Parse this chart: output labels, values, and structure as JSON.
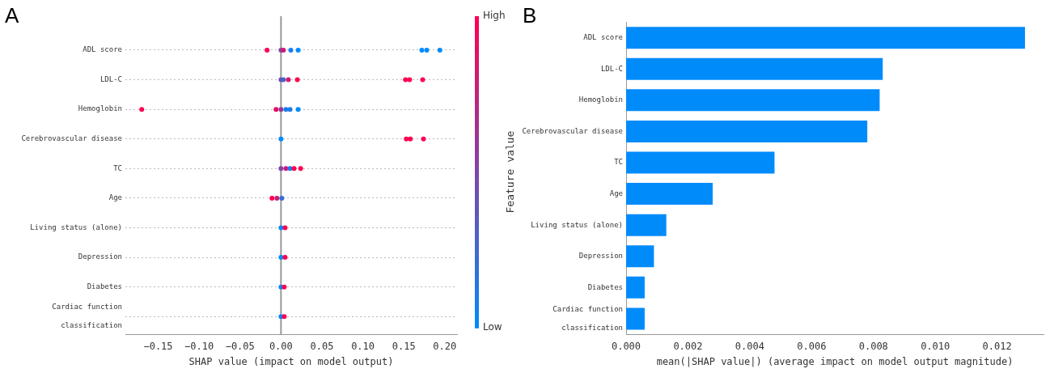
{
  "chart_data": [
    {
      "type": "scatter",
      "title": "A",
      "xlabel": "SHAP value (impact on model output)",
      "clabel": "Feature value",
      "orientation": "horizontal",
      "categories": [
        "ADL score",
        "LDL-C",
        "Hemoglobin",
        "Cerebrovascular disease",
        "TC",
        "Age",
        "Living status (alone)",
        "Depression",
        "Diabetes",
        "Cardiac function\nclassification"
      ],
      "xlim": [
        -0.19,
        0.215
      ],
      "xticks": [
        {
          "value": -0.15,
          "label": "−0.15"
        },
        {
          "value": -0.1,
          "label": "−0.10"
        },
        {
          "value": -0.05,
          "label": "−0.05"
        },
        {
          "value": 0,
          "label": "0.00"
        },
        {
          "value": 0.05,
          "label": "0.05"
        },
        {
          "value": 0.1,
          "label": "0.10"
        },
        {
          "value": 0.15,
          "label": "0.15"
        },
        {
          "value": 0.2,
          "label": "0.20"
        }
      ],
      "grid": "y",
      "marker": "circle",
      "legend": false,
      "ref_lines": [
        {
          "axis": "x",
          "value": 0,
          "color": "#999999"
        }
      ],
      "clim": [
        0,
        1
      ],
      "cticks": [
        {
          "value": 0,
          "label": "Low"
        },
        {
          "value": 1,
          "label": "High"
        }
      ],
      "series": [
        {
          "x": [
            "ADL score",
            "ADL score",
            "ADL score",
            "ADL score",
            "ADL score",
            "ADL score",
            "ADL score",
            "ADL score",
            "LDL-C",
            "LDL-C",
            "LDL-C",
            "LDL-C",
            "LDL-C",
            "LDL-C",
            "LDL-C",
            "Hemoglobin",
            "Hemoglobin",
            "Hemoglobin",
            "Hemoglobin",
            "Hemoglobin",
            "Hemoglobin",
            "Cerebrovascular disease",
            "Cerebrovascular disease",
            "Cerebrovascular disease",
            "Cerebrovascular disease",
            "TC",
            "TC",
            "TC",
            "TC",
            "TC",
            "Age",
            "Age",
            "Age",
            "Living status (alone)",
            "Living status (alone)",
            "Depression",
            "Depression",
            "Diabetes",
            "Diabetes",
            "Cardiac function\nclassification",
            "Cardiac function\nclassification"
          ],
          "values": [
            -0.017,
            0,
            0.003,
            0.012,
            0.021,
            0.172,
            0.178,
            0.194,
            0,
            0.003,
            0.009,
            0.02,
            0.152,
            0.157,
            0.173,
            -0.17,
            -0.006,
            0,
            0.006,
            0.011,
            0.021,
            0,
            0.153,
            0.158,
            0.174,
            0,
            0.006,
            0.011,
            0.016,
            0.024,
            -0.011,
            -0.005,
            0.001,
            0,
            0.005,
            0,
            0.005,
            0,
            0.004,
            0,
            0.004
          ],
          "cvalues": [
            1,
            0.5,
            0.8,
            0.1,
            0,
            0,
            0,
            0,
            0.4,
            0.3,
            0.8,
            1,
            1,
            1,
            1,
            1,
            0.9,
            0.6,
            0.1,
            0.1,
            0,
            0,
            1,
            1,
            1,
            0.5,
            0.8,
            0.1,
            1,
            1,
            1,
            0.8,
            0.2,
            0,
            1,
            0,
            1,
            0,
            1,
            0,
            1
          ]
        }
      ]
    },
    {
      "type": "bar",
      "title": "B",
      "xlabel": "mean(|SHAP value|) (average impact on model output magnitude)",
      "orientation": "horizontal",
      "categories": [
        "ADL score",
        "LDL-C",
        "Hemoglobin",
        "Cerebrovascular disease",
        "TC",
        "Age",
        "Living status (alone)",
        "Depression",
        "Diabetes",
        "Cardiac function\nclassification"
      ],
      "values": [
        0.0129,
        0.0083,
        0.0082,
        0.0078,
        0.0048,
        0.0028,
        0.0013,
        0.0009,
        0.0006,
        0.0006
      ],
      "color": "#008bfb",
      "xlim": [
        0,
        0.0135
      ],
      "xticks": [
        {
          "value": 0,
          "label": "0.000"
        },
        {
          "value": 0.002,
          "label": "0.002"
        },
        {
          "value": 0.004,
          "label": "0.004"
        },
        {
          "value": 0.006,
          "label": "0.006"
        },
        {
          "value": 0.008,
          "label": "0.008"
        },
        {
          "value": 0.01,
          "label": "0.010"
        },
        {
          "value": 0.012,
          "label": "0.012"
        }
      ],
      "grid": false,
      "legend": false
    }
  ]
}
